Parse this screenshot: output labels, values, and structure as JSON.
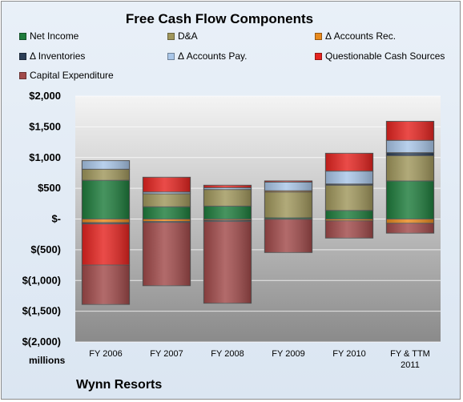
{
  "chart_data": {
    "type": "bar",
    "stacked": true,
    "title": "Free Cash Flow Components",
    "unit_label": "millions",
    "footer": "Wynn Resorts",
    "categories": [
      "FY 2006",
      "FY 2007",
      "FY 2008",
      "FY 2009",
      "FY 2010",
      "FY & TTM 2011"
    ],
    "ylim": [
      -2000,
      2000
    ],
    "yticks": [
      2000,
      1500,
      1000,
      500,
      0,
      -500,
      -1000,
      -1500,
      -2000
    ],
    "ytick_labels": [
      "$2,000",
      "$1,500",
      "$1,000",
      "$500",
      "$-",
      "$(500)",
      "$(1,000)",
      "$(1,500)",
      "$(2,000)"
    ],
    "grid": true,
    "legend_position": "top",
    "series": [
      {
        "name": "Net Income",
        "color": "#1e7c3c",
        "values": [
          630,
          200,
          210,
          20,
          140,
          620
        ]
      },
      {
        "name": "D&A",
        "color": "#a0975c",
        "values": [
          180,
          210,
          270,
          420,
          410,
          410
        ]
      },
      {
        "name": "Δ Accounts Rec.",
        "color": "#e8891e",
        "values": [
          -60,
          -40,
          -20,
          20,
          -30,
          -70
        ]
      },
      {
        "name": "Δ Inventories",
        "color": "#2b3e57",
        "values": [
          -20,
          -15,
          -20,
          -5,
          20,
          50
        ]
      },
      {
        "name": "Δ Accounts Pay.",
        "color": "#a9c6e8",
        "values": [
          140,
          30,
          30,
          140,
          210,
          200
        ]
      },
      {
        "name": "Questionable Cash Sources",
        "color": "#e52420",
        "values": [
          -670,
          240,
          40,
          20,
          290,
          310
        ]
      },
      {
        "name": "Capital Expenditure",
        "color": "#a14a4a",
        "values": [
          -640,
          -1030,
          -1330,
          -540,
          -280,
          -160
        ]
      }
    ]
  }
}
